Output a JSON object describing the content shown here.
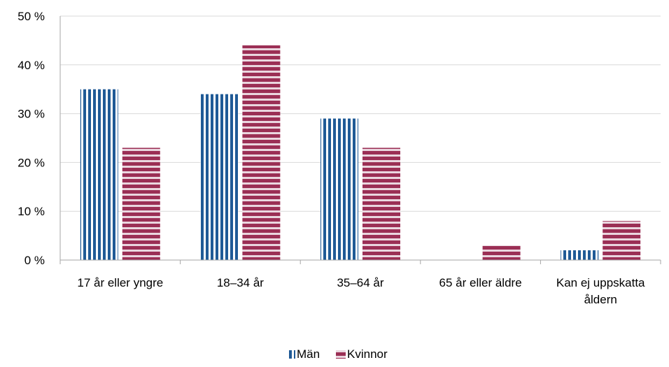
{
  "chart_data": {
    "type": "bar",
    "categories": [
      [
        "17 år eller yngre"
      ],
      [
        "18–34 år"
      ],
      [
        "35–64 år"
      ],
      [
        "65 år eller äldre"
      ],
      [
        "Kan ej uppskatta",
        "åldern"
      ]
    ],
    "series": [
      {
        "name": "Män",
        "values": [
          35,
          34,
          29,
          0,
          2
        ],
        "color": "#1f5a96",
        "pattern": "vertical-stripes"
      },
      {
        "name": "Kvinnor",
        "values": [
          23,
          44,
          23,
          3,
          8
        ],
        "color": "#9b2f55",
        "pattern": "horizontal-stripes"
      }
    ],
    "yticks": [
      "0 %",
      "10 %",
      "20 %",
      "30 %",
      "40 %",
      "50 %"
    ],
    "ylim": [
      0,
      50
    ],
    "title": "",
    "xlabel": "",
    "ylabel": "",
    "grid": true,
    "legend": "bottom-center"
  }
}
